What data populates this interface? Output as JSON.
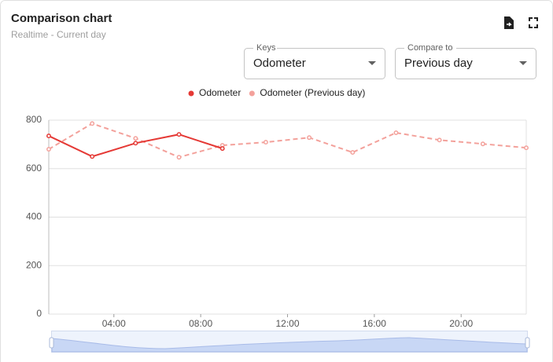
{
  "header": {
    "title": "Comparison chart",
    "subtitle": "Realtime - Current day"
  },
  "controls": [
    {
      "label": "Keys",
      "value": "Odometer"
    },
    {
      "label": "Compare to",
      "value": "Previous day"
    }
  ],
  "chart_data": {
    "type": "line",
    "x": [
      1,
      3,
      5,
      7,
      9,
      11,
      13,
      15,
      17,
      19,
      21,
      23
    ],
    "series": [
      {
        "name": "Odometer",
        "color": "#e53935",
        "line_style": "solid",
        "values": [
          735,
          650,
          705,
          741,
          683,
          null,
          null,
          null,
          null,
          null,
          null,
          null
        ]
      },
      {
        "name": "Odometer (Previous day)",
        "color": "#f3a19b",
        "line_style": "dashed",
        "values": [
          680,
          786,
          725,
          647,
          696,
          709,
          728,
          667,
          748,
          718,
          702,
          686
        ]
      }
    ],
    "xlim": [
      1,
      23
    ],
    "xticks": [
      {
        "value": 4,
        "label": "04:00"
      },
      {
        "value": 8,
        "label": "08:00"
      },
      {
        "value": 12,
        "label": "12:00"
      },
      {
        "value": 16,
        "label": "16:00"
      },
      {
        "value": 20,
        "label": "20:00"
      }
    ],
    "ylim": [
      0,
      800
    ],
    "yticks": [
      0,
      200,
      400,
      600,
      800
    ],
    "grid": true,
    "legend": "top"
  }
}
